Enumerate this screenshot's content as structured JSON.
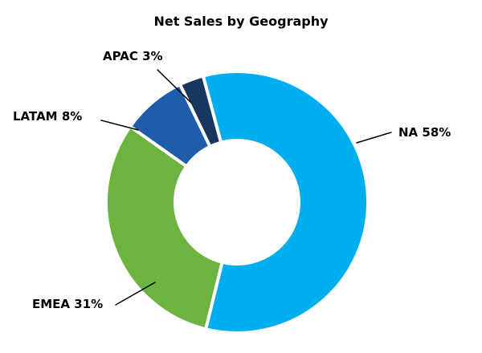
{
  "chart_data": {
    "type": "pie",
    "subtype": "donut",
    "title": "Net Sales by Geography",
    "start_angle_deg": -15,
    "direction": "clockwise",
    "hole_ratio": 0.47,
    "legend": "none",
    "segments": [
      {
        "label": "NA",
        "value": 58,
        "callout": "NA 58%",
        "color": "#00AEEF"
      },
      {
        "label": "EMEA",
        "value": 31,
        "callout": "EMEA 31%",
        "color": "#6DB33F"
      },
      {
        "label": "LATAM",
        "value": 8,
        "callout": "LATAM 8%",
        "color": "#1F5CA9"
      },
      {
        "label": "APAC",
        "value": 3,
        "callout": "APAC 3%",
        "color": "#17375E"
      }
    ]
  }
}
